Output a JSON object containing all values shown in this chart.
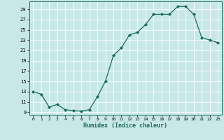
{
  "x": [
    0,
    1,
    2,
    3,
    4,
    5,
    6,
    7,
    8,
    9,
    10,
    11,
    12,
    13,
    14,
    15,
    16,
    17,
    18,
    19,
    20,
    21,
    22,
    23
  ],
  "y": [
    13,
    12.5,
    10,
    10.5,
    9.5,
    9.3,
    9.2,
    9.5,
    12,
    15,
    20,
    21.5,
    24,
    24.5,
    26,
    28,
    28,
    28,
    29.5,
    29.5,
    28,
    23.5,
    23,
    22.5
  ],
  "xlabel": "Humidex (Indice chaleur)",
  "line_color": "#1a6b5a",
  "marker_color": "#1a6b5a",
  "bg_color": "#c8e8e8",
  "grid_color": "#ffffff",
  "ylim": [
    8.5,
    30.5
  ],
  "xlim": [
    -0.5,
    23.5
  ],
  "yticks": [
    9,
    11,
    13,
    15,
    17,
    19,
    21,
    23,
    25,
    27,
    29
  ],
  "xticks": [
    0,
    1,
    2,
    3,
    4,
    5,
    6,
    7,
    8,
    9,
    10,
    11,
    12,
    13,
    14,
    15,
    16,
    17,
    18,
    19,
    20,
    21,
    22,
    23
  ]
}
